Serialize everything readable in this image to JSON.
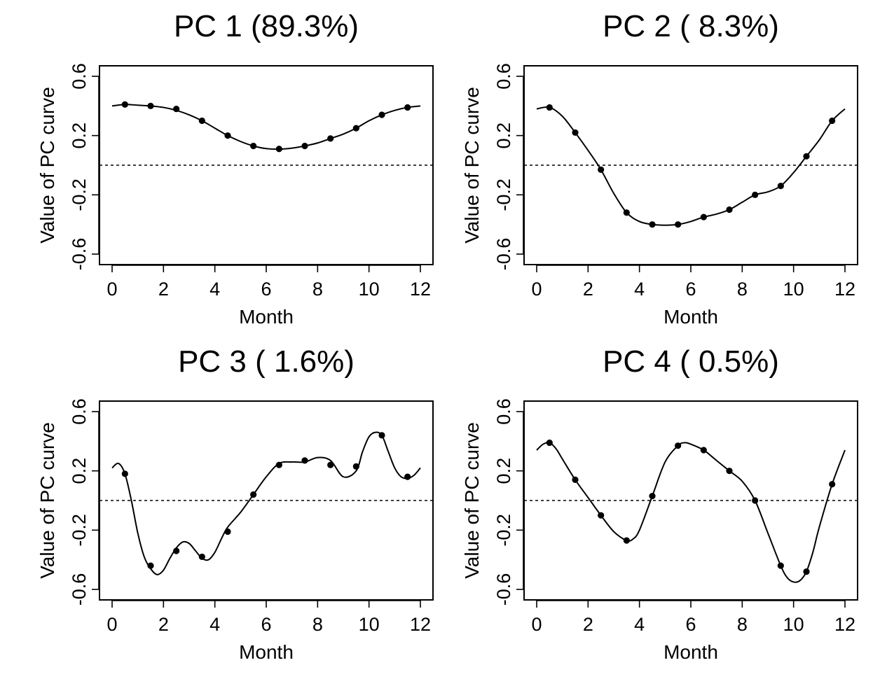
{
  "chart_data": [
    {
      "type": "line",
      "title": "PC 1 (89.3%)",
      "xlabel": "Month",
      "ylabel": "Value of PC curve",
      "xlim": [
        0,
        12
      ],
      "ylim": [
        -0.6,
        0.6
      ],
      "xticks": [
        "0",
        "2",
        "4",
        "6",
        "8",
        "10",
        "12"
      ],
      "yticks": [
        "-0.6",
        "-0.2",
        "0.2",
        "0.6"
      ],
      "reference_line": {
        "y": 0,
        "style": "dotted"
      },
      "points": {
        "x": [
          0.5,
          1.5,
          2.5,
          3.5,
          4.5,
          5.5,
          6.5,
          7.5,
          8.5,
          9.5,
          10.5,
          11.5
        ],
        "y": [
          0.41,
          0.4,
          0.38,
          0.3,
          0.2,
          0.13,
          0.11,
          0.13,
          0.18,
          0.25,
          0.34,
          0.39
        ]
      },
      "curve": {
        "x": [
          0.0,
          0.5,
          1.0,
          1.5,
          2.0,
          2.5,
          3.0,
          3.5,
          4.0,
          4.5,
          5.0,
          5.5,
          6.0,
          6.5,
          7.0,
          7.5,
          8.0,
          8.5,
          9.0,
          9.5,
          10.0,
          10.5,
          11.0,
          11.5,
          12.0
        ],
        "y": [
          0.4,
          0.41,
          0.405,
          0.4,
          0.39,
          0.37,
          0.34,
          0.3,
          0.25,
          0.2,
          0.16,
          0.13,
          0.112,
          0.108,
          0.115,
          0.13,
          0.15,
          0.18,
          0.21,
          0.25,
          0.3,
          0.34,
          0.37,
          0.39,
          0.4
        ]
      }
    },
    {
      "type": "line",
      "title": "PC 2 ( 8.3%)",
      "xlabel": "Month",
      "ylabel": "Value of PC curve",
      "xlim": [
        0,
        12
      ],
      "ylim": [
        -0.6,
        0.6
      ],
      "xticks": [
        "0",
        "2",
        "4",
        "6",
        "8",
        "10",
        "12"
      ],
      "yticks": [
        "-0.6",
        "-0.2",
        "0.2",
        "0.6"
      ],
      "reference_line": {
        "y": 0,
        "style": "dotted"
      },
      "points": {
        "x": [
          0.5,
          1.5,
          2.5,
          3.5,
          4.5,
          5.5,
          6.5,
          7.5,
          8.5,
          9.5,
          10.5,
          11.5
        ],
        "y": [
          0.39,
          0.22,
          -0.03,
          -0.32,
          -0.4,
          -0.4,
          -0.35,
          -0.3,
          -0.2,
          -0.14,
          0.06,
          0.3
        ]
      },
      "curve": {
        "x": [
          0.0,
          0.5,
          1.0,
          1.5,
          2.0,
          2.5,
          3.0,
          3.5,
          4.0,
          4.5,
          5.0,
          5.5,
          6.0,
          6.5,
          7.0,
          7.5,
          8.0,
          8.5,
          9.0,
          9.5,
          10.0,
          10.5,
          11.0,
          11.5,
          12.0
        ],
        "y": [
          0.38,
          0.39,
          0.33,
          0.22,
          0.1,
          -0.03,
          -0.19,
          -0.32,
          -0.38,
          -0.4,
          -0.405,
          -0.4,
          -0.38,
          -0.35,
          -0.33,
          -0.3,
          -0.25,
          -0.2,
          -0.18,
          -0.14,
          -0.05,
          0.06,
          0.17,
          0.3,
          0.38
        ]
      }
    },
    {
      "type": "line",
      "title": "PC 3 ( 1.6%)",
      "xlabel": "Month",
      "ylabel": "Value of PC curve",
      "xlim": [
        0,
        12
      ],
      "ylim": [
        -0.6,
        0.6
      ],
      "xticks": [
        "0",
        "2",
        "4",
        "6",
        "8",
        "10",
        "12"
      ],
      "yticks": [
        "-0.6",
        "-0.2",
        "0.2",
        "0.6"
      ],
      "reference_line": {
        "y": 0,
        "style": "dotted"
      },
      "points": {
        "x": [
          0.5,
          1.5,
          2.5,
          3.5,
          4.5,
          5.5,
          6.5,
          7.5,
          8.5,
          9.5,
          10.5,
          11.5
        ],
        "y": [
          0.18,
          -0.44,
          -0.34,
          -0.38,
          -0.21,
          0.04,
          0.24,
          0.27,
          0.24,
          0.23,
          0.44,
          0.16
        ]
      },
      "curve": {
        "x": [
          0.0,
          0.25,
          0.5,
          0.75,
          1.0,
          1.25,
          1.5,
          1.75,
          2.0,
          2.25,
          2.5,
          2.75,
          3.0,
          3.25,
          3.5,
          3.75,
          4.0,
          4.25,
          4.5,
          5.0,
          5.5,
          6.0,
          6.5,
          7.0,
          7.5,
          8.0,
          8.5,
          9.0,
          9.5,
          9.75,
          10.0,
          10.25,
          10.5,
          10.75,
          11.0,
          11.25,
          11.5,
          11.75,
          12.0
        ],
        "y": [
          0.22,
          0.25,
          0.18,
          0.0,
          -0.22,
          -0.38,
          -0.46,
          -0.5,
          -0.47,
          -0.39,
          -0.32,
          -0.28,
          -0.29,
          -0.34,
          -0.39,
          -0.4,
          -0.35,
          -0.26,
          -0.18,
          -0.08,
          0.04,
          0.16,
          0.25,
          0.26,
          0.26,
          0.29,
          0.27,
          0.16,
          0.2,
          0.33,
          0.43,
          0.46,
          0.44,
          0.33,
          0.22,
          0.16,
          0.15,
          0.17,
          0.22
        ]
      }
    },
    {
      "type": "line",
      "title": "PC 4 ( 0.5%)",
      "xlabel": "Month",
      "ylabel": "Value of PC curve",
      "xlim": [
        0,
        12
      ],
      "ylim": [
        -0.6,
        0.6
      ],
      "xticks": [
        "0",
        "2",
        "4",
        "6",
        "8",
        "10",
        "12"
      ],
      "yticks": [
        "-0.6",
        "-0.2",
        "0.2",
        "0.6"
      ],
      "reference_line": {
        "y": 0,
        "style": "dotted"
      },
      "points": {
        "x": [
          0.5,
          1.5,
          2.5,
          3.5,
          4.5,
          5.5,
          6.5,
          7.5,
          8.5,
          9.5,
          10.5,
          11.5
        ],
        "y": [
          0.39,
          0.14,
          -0.1,
          -0.27,
          0.03,
          0.37,
          0.34,
          0.2,
          0.0,
          -0.44,
          -0.48,
          0.11
        ]
      },
      "curve": {
        "x": [
          0.0,
          0.25,
          0.5,
          0.75,
          1.0,
          1.5,
          2.0,
          2.5,
          3.0,
          3.5,
          3.75,
          4.0,
          4.5,
          5.0,
          5.5,
          5.75,
          6.0,
          6.5,
          7.0,
          7.5,
          8.0,
          8.5,
          9.0,
          9.5,
          9.75,
          10.0,
          10.25,
          10.5,
          10.75,
          11.0,
          11.5,
          12.0
        ],
        "y": [
          0.34,
          0.38,
          0.39,
          0.35,
          0.28,
          0.14,
          0.02,
          -0.1,
          -0.21,
          -0.27,
          -0.26,
          -0.2,
          0.03,
          0.26,
          0.37,
          0.39,
          0.38,
          0.34,
          0.27,
          0.2,
          0.13,
          0.0,
          -0.22,
          -0.44,
          -0.52,
          -0.55,
          -0.54,
          -0.48,
          -0.35,
          -0.18,
          0.11,
          0.34
        ]
      }
    }
  ]
}
